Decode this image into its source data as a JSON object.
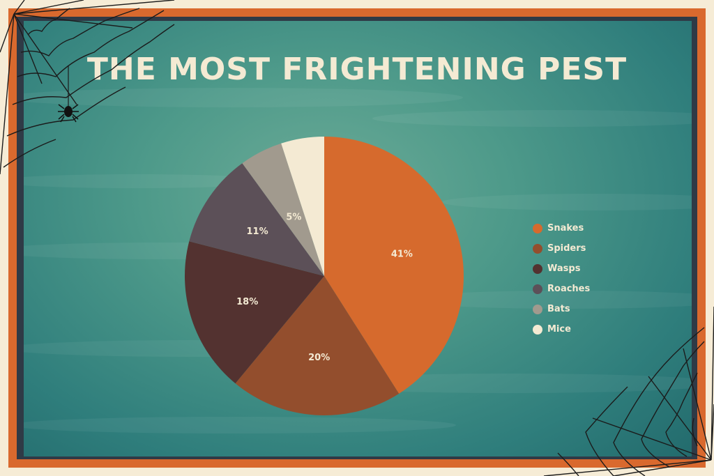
{
  "chart_data": {
    "type": "pie",
    "title": "THE MOST FRIGHTENING PEST",
    "categories": [
      "Snakes",
      "Spiders",
      "Wasps",
      "Roaches",
      "Bats",
      "Mice"
    ],
    "values": [
      41,
      20,
      18,
      11,
      5,
      5
    ],
    "labels": [
      "41%",
      "20%",
      "18%",
      "11%",
      "5%",
      "5%"
    ],
    "colors": [
      "#d66a2d",
      "#934e2d",
      "#533230",
      "#5c5058",
      "#a19a8e",
      "#f4ead3"
    ],
    "legend_position": "right"
  },
  "icons": {
    "corner_top_left": "spider-web-icon",
    "spider": "spider-icon",
    "corner_bottom_right": "spider-web-icon"
  }
}
